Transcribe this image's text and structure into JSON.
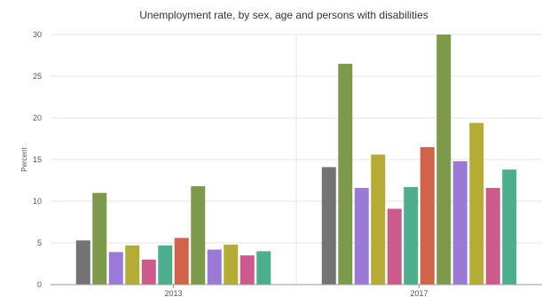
{
  "chart_data": {
    "type": "bar",
    "title": "Unemployment rate, by sex, age and persons with disabilities",
    "xlabel": "",
    "ylabel": "Percent",
    "ylim": [
      0,
      30
    ],
    "yticks": [
      0,
      5,
      10,
      15,
      20,
      25,
      30
    ],
    "categories": [
      "2013",
      "2017"
    ],
    "grid": true,
    "legend": "none",
    "series": [
      {
        "color": "#737373",
        "values": [
          5.3,
          14.1
        ]
      },
      {
        "color": "#7d9a4b",
        "values": [
          11.0,
          26.5
        ]
      },
      {
        "color": "#9a7ad6",
        "values": [
          3.9,
          11.6
        ]
      },
      {
        "color": "#b5ac35",
        "values": [
          4.7,
          15.6
        ]
      },
      {
        "color": "#cc5a8c",
        "values": [
          3.0,
          9.1
        ]
      },
      {
        "color": "#4cae8c",
        "values": [
          4.7,
          11.7
        ]
      },
      {
        "color": "#d0634a",
        "values": [
          5.6,
          16.5
        ]
      },
      {
        "color": "#7d9a4b",
        "values": [
          11.8,
          30.0
        ]
      },
      {
        "color": "#9a7ad6",
        "values": [
          4.2,
          14.8
        ]
      },
      {
        "color": "#b5ac35",
        "values": [
          4.8,
          19.4
        ]
      },
      {
        "color": "#cc5a8c",
        "values": [
          3.5,
          11.6
        ]
      },
      {
        "color": "#4cae8c",
        "values": [
          4.0,
          13.8
        ]
      }
    ]
  }
}
